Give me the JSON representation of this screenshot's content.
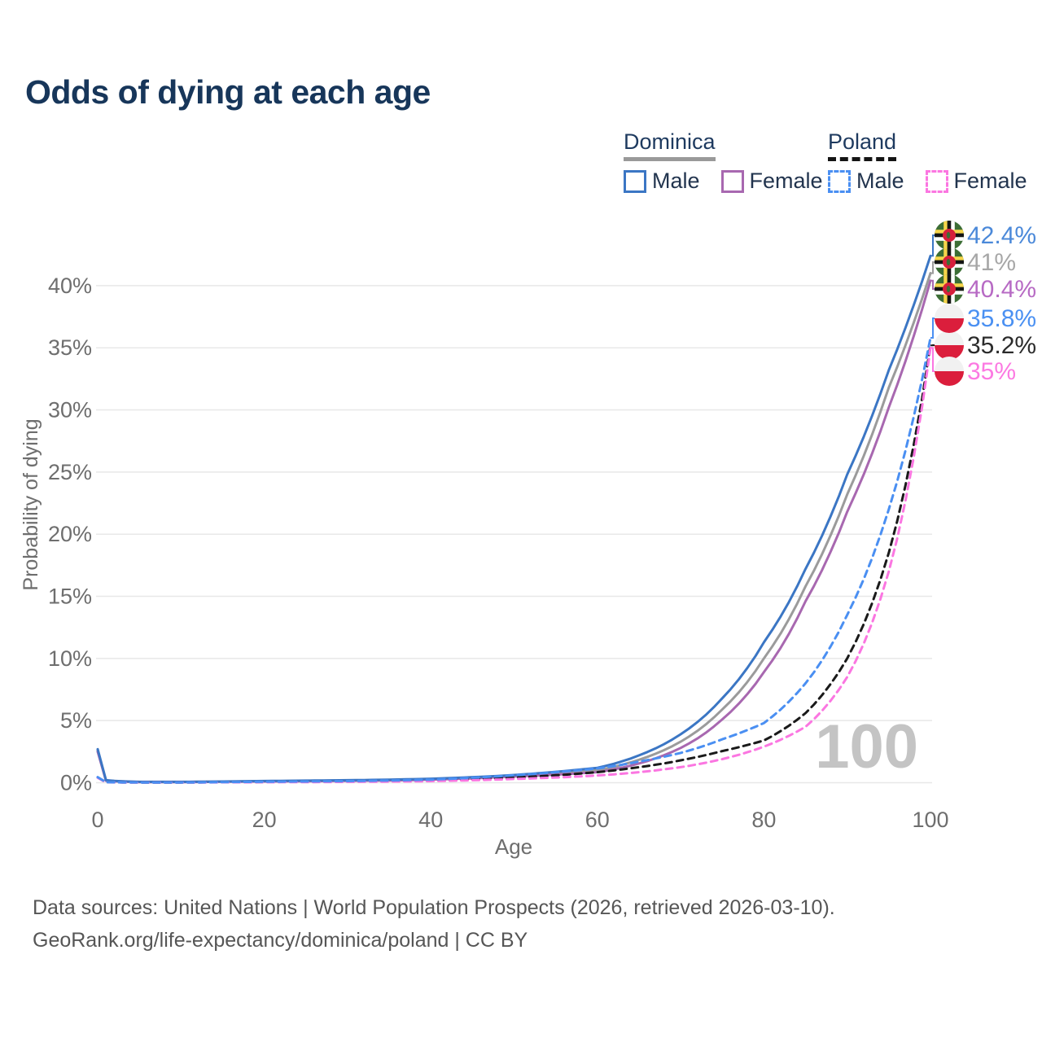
{
  "header": {
    "title": "Odds of dying at each age"
  },
  "legend": {
    "groups": [
      {
        "country": "Dominica",
        "line_style": "solid",
        "underline_color": "#999999",
        "items": [
          {
            "label": "Male",
            "color": "#3b76c4"
          },
          {
            "label": "Female",
            "color": "#a868b0"
          }
        ]
      },
      {
        "country": "Poland",
        "line_style": "dashed",
        "underline_color": "#141414",
        "items": [
          {
            "label": "Male",
            "color": "#4a8ff2"
          },
          {
            "label": "Female",
            "color": "#fb76e1"
          }
        ]
      }
    ]
  },
  "colors": {
    "title": "#17365a",
    "axis_text": "#6e6e6e",
    "grid": "#e8e8e8",
    "watermark": "#c4c4c4",
    "footer_text": "#565656"
  },
  "chart_data": {
    "type": "line",
    "title": "Odds of dying at each age",
    "xlabel": "Age",
    "ylabel": "Probability of dying",
    "x_ticks": [
      0,
      20,
      40,
      60,
      80,
      100
    ],
    "y_tick_labels": [
      "0%",
      "5%",
      "10%",
      "15%",
      "20%",
      "25%",
      "30%",
      "35%",
      "40%"
    ],
    "y_ticks_pct": [
      0,
      5,
      10,
      15,
      20,
      25,
      30,
      35,
      40
    ],
    "xlim": [
      0,
      100
    ],
    "ylim_pct": [
      0,
      44
    ],
    "grid": "horizontal-only",
    "watermark": "100",
    "series": [
      {
        "id": "do",
        "name": "Dominica Overall",
        "color": "#9b9b9b",
        "dashed": false,
        "end_label": {
          "text": "41%",
          "color": "#a7a7a7",
          "flag": "dominica"
        },
        "points_age_pct": [
          [
            0,
            2.6
          ],
          [
            1,
            0.18
          ],
          [
            5,
            0.06
          ],
          [
            10,
            0.06
          ],
          [
            15,
            0.09
          ],
          [
            20,
            0.12
          ],
          [
            25,
            0.15
          ],
          [
            30,
            0.18
          ],
          [
            35,
            0.22
          ],
          [
            40,
            0.28
          ],
          [
            45,
            0.4
          ],
          [
            50,
            0.55
          ],
          [
            55,
            0.75
          ],
          [
            60,
            1.0
          ],
          [
            65,
            1.85
          ],
          [
            70,
            3.3
          ],
          [
            75,
            5.9
          ],
          [
            80,
            10.0
          ],
          [
            85,
            15.8
          ],
          [
            90,
            23.2
          ],
          [
            95,
            31.8
          ],
          [
            100,
            41.0
          ]
        ]
      },
      {
        "id": "df",
        "name": "Dominica Female",
        "color": "#a868b0",
        "dashed": false,
        "end_label": {
          "text": "40.4%",
          "color": "#b76ac4",
          "flag": "dominica"
        },
        "points_age_pct": [
          [
            0,
            2.5
          ],
          [
            1,
            0.16
          ],
          [
            5,
            0.05
          ],
          [
            10,
            0.05
          ],
          [
            15,
            0.08
          ],
          [
            20,
            0.1
          ],
          [
            25,
            0.12
          ],
          [
            30,
            0.15
          ],
          [
            35,
            0.18
          ],
          [
            40,
            0.25
          ],
          [
            45,
            0.35
          ],
          [
            50,
            0.5
          ],
          [
            55,
            0.65
          ],
          [
            60,
            0.85
          ],
          [
            65,
            1.55
          ],
          [
            70,
            2.8
          ],
          [
            75,
            5.1
          ],
          [
            80,
            8.9
          ],
          [
            85,
            14.6
          ],
          [
            90,
            21.8
          ],
          [
            95,
            30.2
          ],
          [
            100,
            40.4
          ]
        ]
      },
      {
        "id": "dm",
        "name": "Dominica Male",
        "color": "#3b76c4",
        "dashed": false,
        "end_label": {
          "text": "42.4%",
          "color": "#4b89d9",
          "flag": "dominica"
        },
        "points_age_pct": [
          [
            0,
            2.7
          ],
          [
            1,
            0.2
          ],
          [
            5,
            0.07
          ],
          [
            10,
            0.07
          ],
          [
            15,
            0.1
          ],
          [
            20,
            0.14
          ],
          [
            25,
            0.17
          ],
          [
            30,
            0.2
          ],
          [
            35,
            0.25
          ],
          [
            40,
            0.32
          ],
          [
            45,
            0.45
          ],
          [
            50,
            0.62
          ],
          [
            55,
            0.88
          ],
          [
            60,
            1.2
          ],
          [
            65,
            2.2
          ],
          [
            70,
            3.9
          ],
          [
            75,
            6.8
          ],
          [
            80,
            11.3
          ],
          [
            85,
            17.2
          ],
          [
            90,
            24.8
          ],
          [
            95,
            33.2
          ],
          [
            100,
            42.4
          ]
        ]
      },
      {
        "id": "po",
        "name": "Poland Overall",
        "color": "#1a1a1a",
        "dashed": true,
        "end_label": {
          "text": "35.2%",
          "color": "#2b2b2b",
          "flag": "poland"
        },
        "points_age_pct": [
          [
            0,
            0.42
          ],
          [
            1,
            0.04
          ],
          [
            5,
            0.02
          ],
          [
            10,
            0.02
          ],
          [
            15,
            0.04
          ],
          [
            20,
            0.06
          ],
          [
            25,
            0.08
          ],
          [
            30,
            0.1
          ],
          [
            35,
            0.13
          ],
          [
            40,
            0.18
          ],
          [
            45,
            0.28
          ],
          [
            50,
            0.42
          ],
          [
            55,
            0.6
          ],
          [
            60,
            0.85
          ],
          [
            65,
            1.25
          ],
          [
            70,
            1.8
          ],
          [
            75,
            2.55
          ],
          [
            80,
            3.4
          ],
          [
            85,
            5.6
          ],
          [
            90,
            10.0
          ],
          [
            95,
            18.5
          ],
          [
            100,
            35.2
          ]
        ]
      },
      {
        "id": "pf",
        "name": "Poland Female",
        "color": "#fb76e1",
        "dashed": true,
        "end_label": {
          "text": "35%",
          "color": "#fc79e2",
          "flag": "poland"
        },
        "points_age_pct": [
          [
            0,
            0.4
          ],
          [
            1,
            0.03
          ],
          [
            5,
            0.015
          ],
          [
            10,
            0.015
          ],
          [
            15,
            0.03
          ],
          [
            20,
            0.04
          ],
          [
            25,
            0.05
          ],
          [
            30,
            0.07
          ],
          [
            35,
            0.09
          ],
          [
            40,
            0.13
          ],
          [
            45,
            0.2
          ],
          [
            50,
            0.3
          ],
          [
            55,
            0.42
          ],
          [
            60,
            0.58
          ],
          [
            65,
            0.85
          ],
          [
            70,
            1.25
          ],
          [
            75,
            1.9
          ],
          [
            80,
            2.9
          ],
          [
            85,
            4.5
          ],
          [
            90,
            8.5
          ],
          [
            95,
            17.0
          ],
          [
            100,
            35.0
          ]
        ]
      },
      {
        "id": "pm",
        "name": "Poland Male",
        "color": "#4a8ff2",
        "dashed": true,
        "end_label": {
          "text": "35.8%",
          "color": "#4a90f2",
          "flag": "poland"
        },
        "points_age_pct": [
          [
            0,
            0.45
          ],
          [
            1,
            0.04
          ],
          [
            5,
            0.02
          ],
          [
            10,
            0.02
          ],
          [
            15,
            0.05
          ],
          [
            20,
            0.08
          ],
          [
            25,
            0.1
          ],
          [
            30,
            0.13
          ],
          [
            35,
            0.18
          ],
          [
            40,
            0.25
          ],
          [
            45,
            0.4
          ],
          [
            50,
            0.6
          ],
          [
            55,
            0.85
          ],
          [
            60,
            1.15
          ],
          [
            65,
            1.7
          ],
          [
            70,
            2.4
          ],
          [
            75,
            3.5
          ],
          [
            80,
            4.8
          ],
          [
            85,
            8.0
          ],
          [
            90,
            13.5
          ],
          [
            95,
            22.0
          ],
          [
            100,
            35.8
          ]
        ]
      }
    ]
  },
  "footer": {
    "line1": "Data sources: United Nations | World Population Prospects (2026, retrieved 2026-03-10).",
    "line2": "GeoRank.org/life-expectancy/dominica/poland | CC BY"
  }
}
